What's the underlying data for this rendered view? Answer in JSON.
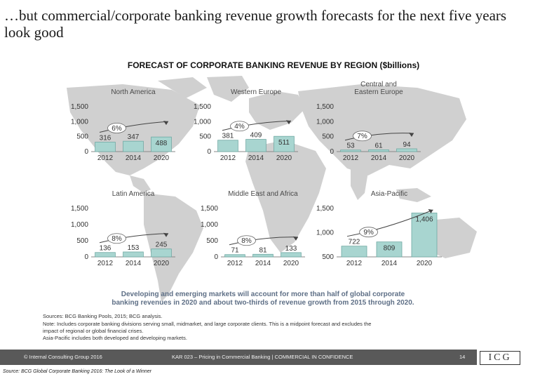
{
  "slide": {
    "title": "…but commercial/corporate banking revenue growth forecasts for the next five years look good",
    "chart_heading": "FORECAST OF CORPORATE BANKING REVENUE BY REGION ($billions)"
  },
  "colors": {
    "bar": "#a8d5d0",
    "bar_stroke": "#6fa9a3",
    "map": "#d0d0d0",
    "text": "#555555",
    "footer": "#595959"
  },
  "chart_data": [
    {
      "type": "bar",
      "title": "North America",
      "categories": [
        "2012",
        "2014",
        "2020"
      ],
      "values": [
        316,
        347,
        488
      ],
      "value_labels": [
        "316",
        "347",
        "488"
      ],
      "cagr": "6%",
      "yticks": [
        "0",
        "500",
        "1,000",
        "1,500"
      ],
      "ylim": [
        0,
        1500
      ]
    },
    {
      "type": "bar",
      "title": "Western Europe",
      "categories": [
        "2012",
        "2014",
        "2020"
      ],
      "values": [
        381,
        409,
        511
      ],
      "value_labels": [
        "381",
        "409",
        "511"
      ],
      "cagr": "4%",
      "yticks": [
        "0",
        "500",
        "1,000",
        "1,500"
      ],
      "ylim": [
        0,
        1500
      ]
    },
    {
      "type": "bar",
      "title": "Central and Eastern Europe",
      "title_lines": [
        "Central and",
        "Eastern Europe"
      ],
      "categories": [
        "2012",
        "2014",
        "2020"
      ],
      "values": [
        53,
        61,
        94
      ],
      "value_labels": [
        "53",
        "61",
        "94"
      ],
      "cagr": "7%",
      "yticks": [
        "0",
        "500",
        "1,000",
        "1,500"
      ],
      "ylim": [
        0,
        1500
      ]
    },
    {
      "type": "bar",
      "title": "Latin America",
      "categories": [
        "2012",
        "2014",
        "2020"
      ],
      "values": [
        136,
        153,
        245
      ],
      "value_labels": [
        "136",
        "153",
        "245"
      ],
      "cagr": "8%",
      "yticks": [
        "0",
        "500",
        "1,000",
        "1,500"
      ],
      "ylim": [
        0,
        1500
      ]
    },
    {
      "type": "bar",
      "title": "Middle East and Africa",
      "categories": [
        "2012",
        "2014",
        "2020"
      ],
      "values": [
        71,
        81,
        133
      ],
      "value_labels": [
        "71",
        "81",
        "133"
      ],
      "cagr": "8%",
      "yticks": [
        "0",
        "500",
        "1,000",
        "1,500"
      ],
      "ylim": [
        0,
        1500
      ]
    },
    {
      "type": "bar",
      "title": "Asia-Pacific",
      "categories": [
        "2012",
        "2014",
        "2020"
      ],
      "values": [
        722,
        809,
        1406
      ],
      "value_labels": [
        "722",
        "809",
        "1,406"
      ],
      "cagr": "9%",
      "yticks": [
        "500",
        "1,000",
        "1,500"
      ],
      "ylim": [
        500,
        1500
      ]
    }
  ],
  "callout": "Developing and emerging markets will account for more than half of global corporate banking revenues in 2020 and about two-thirds of revenue growth from 2015 through 2020.",
  "notes": {
    "sources": "Sources: BCG Banking Pools, 2015; BCG analysis.",
    "note": "Note: Includes corporate banking divisions serving small, midmarket, and large corporate clients. This is a midpoint forecast and excludes the impact of regional or global financial crises. Asia-Pacific includes both developed and developing markets."
  },
  "footer": {
    "left": "© Internal Consulting Group 2016",
    "middle": "KAR 023 – Pricing in Commercial Banking | COMMERCIAL IN CONFIDENCE",
    "page": "14",
    "logo": "ICG",
    "source": "Source: BCG Global Corporate Banking 2016: The Look of a Winner"
  }
}
